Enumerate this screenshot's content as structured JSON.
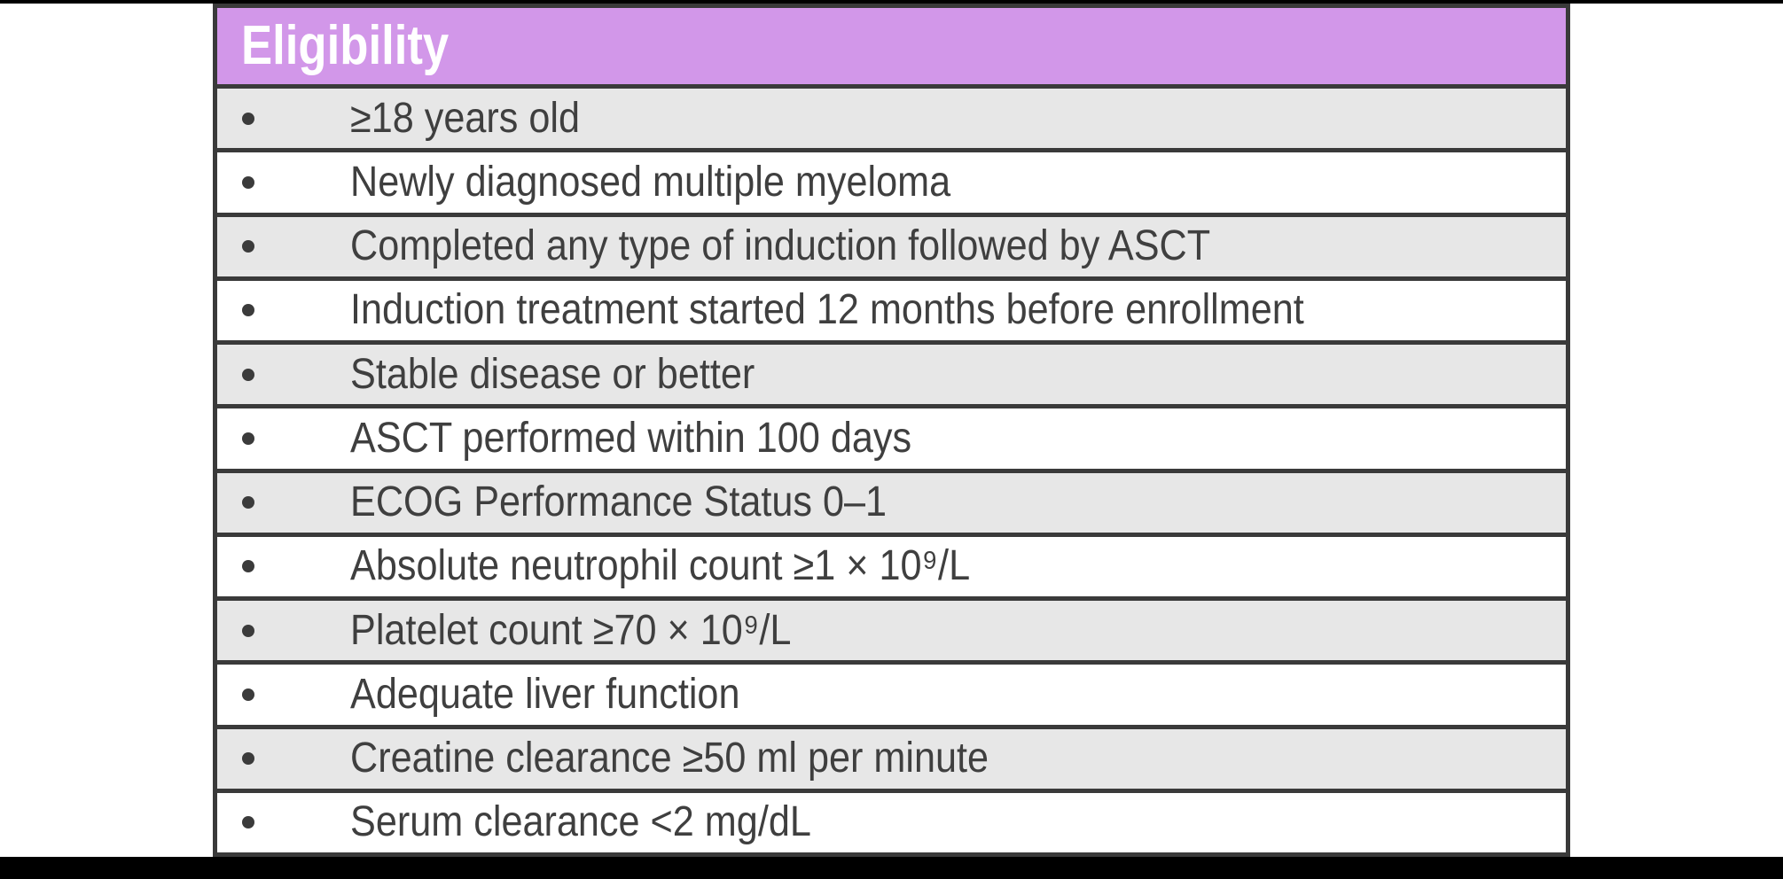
{
  "colors": {
    "page_bg": "#ffffff",
    "frame": "#000000",
    "border": "#3a3a3a",
    "header_bg": "#d297e9",
    "header_text": "#ffffff",
    "row_bg": "#ffffff",
    "row_alt_bg": "#e7e7e7",
    "text": "#3f3f3f",
    "bullet": "#3b3b3b"
  },
  "table": {
    "header": {
      "title": "Eligibility"
    },
    "rows": [
      {
        "label": "≥18 years old"
      },
      {
        "label": "Newly diagnosed multiple myeloma"
      },
      {
        "label": "Completed any type of induction followed by ASCT"
      },
      {
        "label": "Induction treatment started 12 months before enrollment"
      },
      {
        "label": "Stable disease or better"
      },
      {
        "label": "ASCT performed within 100 days"
      },
      {
        "label": "ECOG Performance Status 0–1"
      },
      {
        "label": "Absolute neutrophil count ≥1 × 10⁹/L"
      },
      {
        "label": "Platelet count ≥70 × 10⁹/L"
      },
      {
        "label": "Adequate liver function"
      },
      {
        "label": "Creatine clearance ≥50 ml per minute"
      },
      {
        "label": "Serum clearance <2 mg/dL"
      }
    ]
  }
}
